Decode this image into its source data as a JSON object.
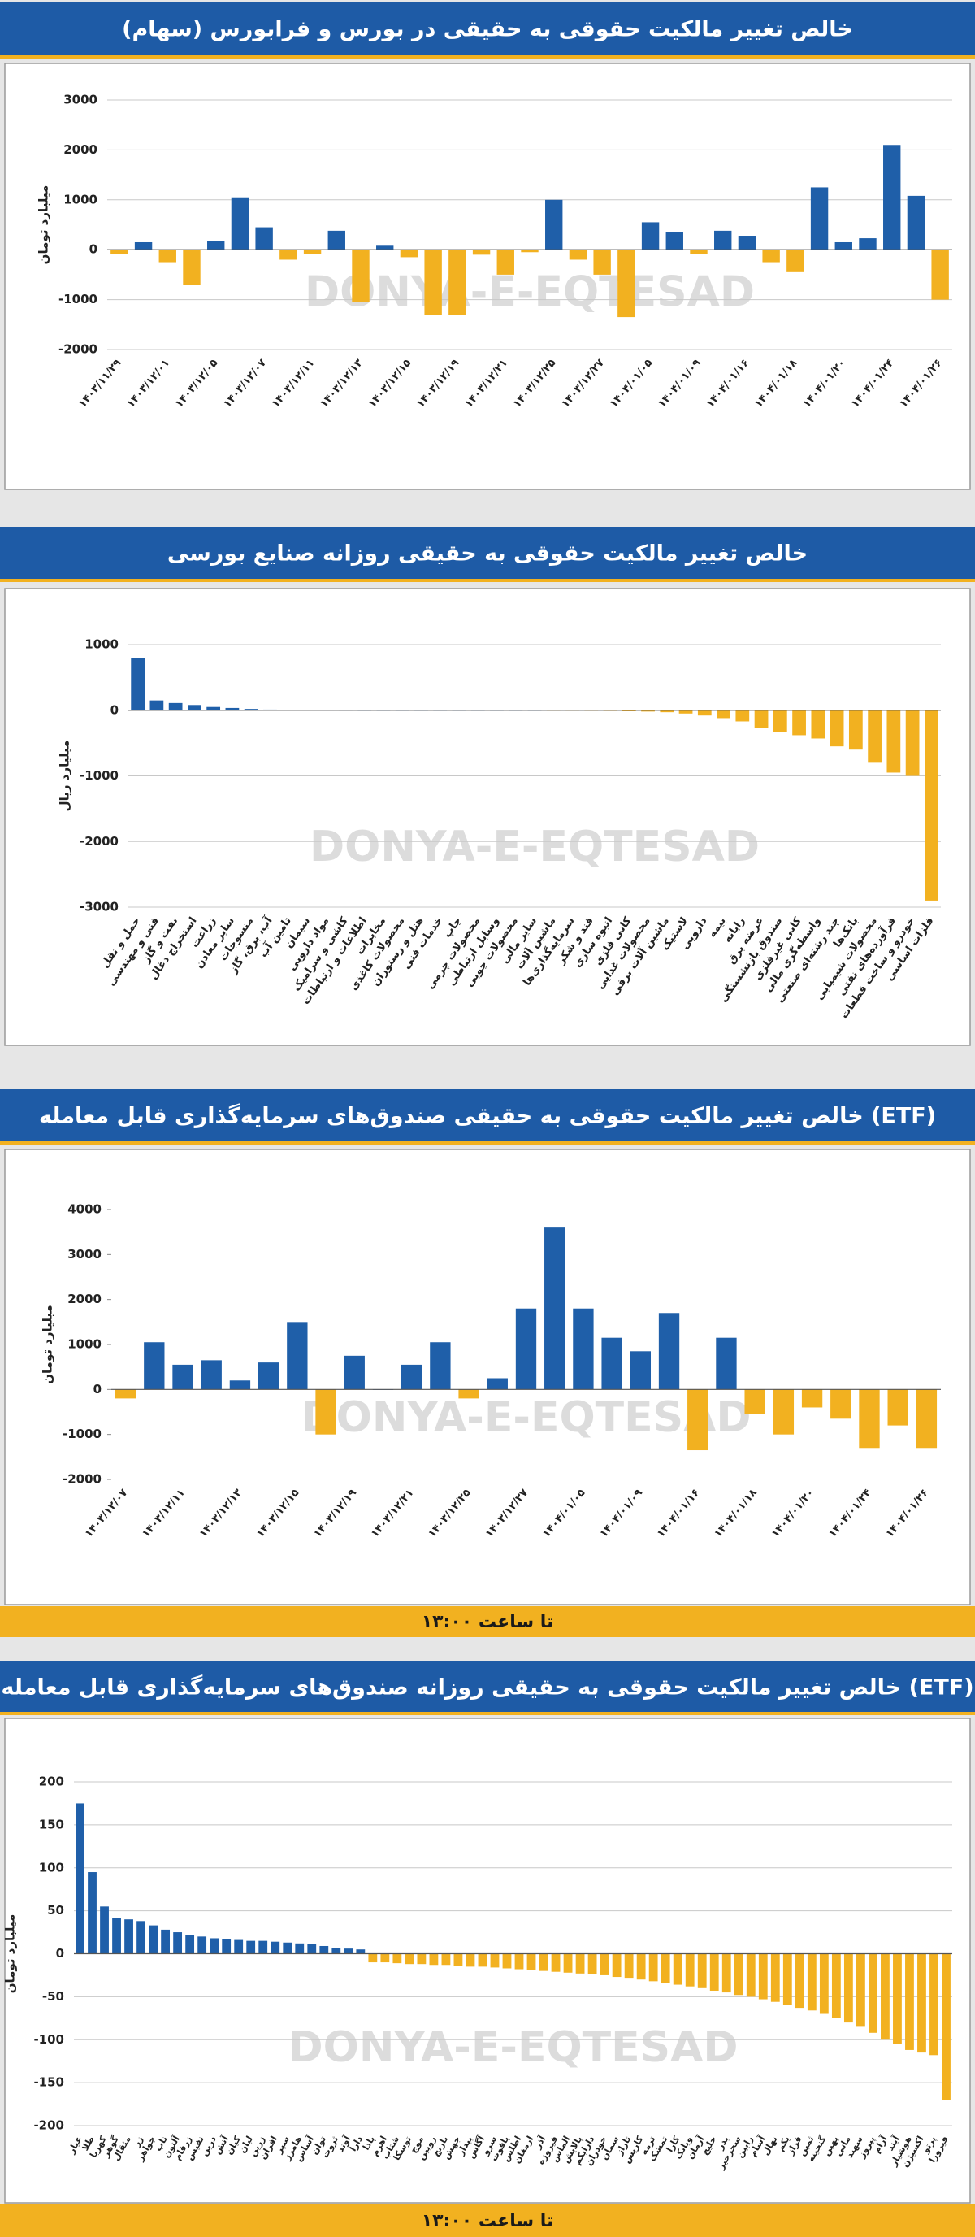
{
  "watermark": "DONYA-E-EQTESAD",
  "chart_data": [
    {
      "type": "bar",
      "title": "خالص تغییر مالکیت حقوقی به حقیقی در بورس و فرابورس (سهام)",
      "y_label": "میلیارد تومان",
      "categories": [
        "۱۴۰۳/۱۱/۲۹",
        null,
        "۱۴۰۳/۱۲/۰۱",
        null,
        "۱۴۰۳/۱۲/۰۵",
        null,
        "۱۴۰۳/۱۲/۰۷",
        null,
        "۱۴۰۳/۱۲/۱۱",
        null,
        "۱۴۰۳/۱۲/۱۳",
        null,
        "۱۴۰۳/۱۲/۱۵",
        null,
        "۱۴۰۳/۱۲/۱۹",
        null,
        "۱۴۰۳/۱۲/۲۱",
        null,
        "۱۴۰۳/۱۲/۲۵",
        null,
        "۱۴۰۳/۱۲/۲۷",
        null,
        "۱۴۰۴/۰۱/۰۵",
        null,
        "۱۴۰۴/۰۱/۰۹",
        null,
        "۱۴۰۴/۰۱/۱۶",
        null,
        "۱۴۰۴/۰۱/۱۸",
        null,
        "۱۴۰۴/۰۱/۲۰",
        null,
        "۱۴۰۴/۰۱/۲۴",
        null,
        "۱۴۰۴/۰۱/۲۶"
      ],
      "values": [
        -80,
        150,
        -250,
        -700,
        170,
        1050,
        450,
        -200,
        -80,
        380,
        -1050,
        80,
        -150,
        -1300,
        -1300,
        -100,
        -500,
        -50,
        1000,
        -200,
        -500,
        -1350,
        550,
        350,
        -80,
        380,
        280,
        -250,
        -450,
        1250,
        150,
        230,
        2100,
        1080,
        -1000
      ],
      "color_positive": "#1f5fa9",
      "color_negative": "#f2b120",
      "ylim": [
        -2000,
        3000
      ],
      "yticks": [
        -2000,
        -1000,
        0,
        1000,
        2000,
        3000
      ],
      "grid": true
    },
    {
      "type": "bar",
      "title": "خالص تغییر مالکیت حقوقی به حقیقی روزانه صنایع بورسی",
      "y_label": "میلیارد ریال",
      "categories": [
        "حمل و نقل",
        "فنی و مهندسی",
        "نفت و گاز",
        "استخراج ذغال",
        "زراعت",
        "سایر معادن",
        "منسوجات",
        "آب، برق، گاز",
        "تامین آب",
        "سیمان",
        "مواد دارویی",
        "کاشی و سرامیک",
        "اطلاعات و ارتباطات",
        "مخابرات",
        "محصولات کاغذی",
        "هتل و رستوران",
        "خدمات فنی",
        "چاپ",
        "محصولات چرمی",
        "وسایل ارتباطی",
        "محصولات چوبی",
        "سایر مالی",
        "ماشین آلات",
        "سرمایه‌گذاری‌ها",
        "قند و شکر",
        "انبوه سازی",
        "کانی فلزی",
        "محصولات غذایی",
        "ماشین آلات برقی",
        "لاستیک",
        "دارویی",
        "بیمه",
        "رایانه",
        "عرضه برق",
        "صندوق بازنشستگی",
        "کانی غیرفلزی",
        "واسطه‌گری مالی",
        "چند رشته‌ای صنعتی",
        "بانک‌ها",
        "محصولات شیمیایی",
        "فرآورده‌های نفتی",
        "خودرو و ساخت قطعات",
        "فلزات اساسی"
      ],
      "values": [
        800,
        150,
        110,
        80,
        50,
        35,
        20,
        10,
        8,
        5,
        3,
        2,
        0,
        0,
        0,
        0,
        0,
        0,
        0,
        0,
        0,
        0,
        -3,
        -5,
        -8,
        -10,
        -15,
        -20,
        -30,
        -50,
        -80,
        -120,
        -170,
        -270,
        -330,
        -380,
        -430,
        -550,
        -600,
        -800,
        -950,
        -1000,
        -2900
      ],
      "color_positive": "#1f5fa9",
      "color_negative": "#f2b120",
      "ylim": [
        -3000,
        1000
      ],
      "yticks": [
        -3000,
        -2000,
        -1000,
        0,
        1000
      ],
      "grid": true
    },
    {
      "type": "bar",
      "title": "خالص تغییر مالکیت حقوقی به حقیقی صندوق‌های سرمایه‌گذاری قابل معامله (ETF)",
      "y_label": "میلیارد تومان",
      "note": "تا ساعت ۱۳:۰۰",
      "categories": [
        "۱۴۰۳/۱۲/۰۷",
        null,
        "۱۴۰۳/۱۲/۱۱",
        null,
        "۱۴۰۳/۱۲/۱۳",
        null,
        "۱۴۰۳/۱۲/۱۵",
        null,
        "۱۴۰۳/۱۲/۱۹",
        null,
        "۱۴۰۳/۱۲/۲۱",
        null,
        "۱۴۰۳/۱۲/۲۵",
        null,
        "۱۴۰۳/۱۲/۲۷",
        null,
        "۱۴۰۴/۰۱/۰۵",
        null,
        "۱۴۰۴/۰۱/۰۹",
        null,
        "۱۴۰۴/۰۱/۱۶",
        null,
        "۱۴۰۴/۰۱/۱۸",
        null,
        "۱۴۰۴/۰۱/۲۰",
        null,
        "۱۴۰۴/۰۱/۲۴",
        null,
        "۱۴۰۴/۰۱/۲۶"
      ],
      "values": [
        -200,
        1050,
        550,
        650,
        200,
        600,
        1500,
        -1000,
        750,
        0,
        550,
        1050,
        -200,
        250,
        1800,
        3600,
        1800,
        1150,
        850,
        1700,
        -1350,
        1150,
        -550,
        -1000,
        -400,
        -650,
        -1300,
        -800,
        -1300
      ],
      "color_positive": "#1f5fa9",
      "color_negative": "#f2b120",
      "ylim": [
        -2000,
        4000
      ],
      "yticks": [
        -2000,
        -1000,
        0,
        1000,
        2000,
        3000,
        4000
      ],
      "grid": false
    },
    {
      "type": "bar",
      "title": "خالص تغییر مالکیت حقوقی به حقیقی روزانه صندوق‌های سرمایه‌گذاری قابل معامله (ETF)",
      "y_label": "میلیارد تومان",
      "note": "تا ساعت ۱۳:۰۰",
      "categories": [
        "عیار",
        "طلا",
        "کهربا",
        "گوهر",
        "مثقال",
        "زر",
        "جواهر",
        "ناب",
        "آلتون",
        "زرفام",
        "نفیس",
        "درین",
        "آتش",
        "کیان",
        "لیان",
        "زرین",
        "افران",
        "سپر",
        "هامرز",
        "آساس",
        "توان",
        "ثروت",
        "آوند",
        "دارا",
        "پادا",
        "اهرم",
        "شتاب",
        "توسکا",
        "موج",
        "رویین",
        "نارنج",
        "جهش",
        "بیدار",
        "آگاس",
        "سرو",
        "یاقوت",
        "اطلس",
        "ارمغان",
        "آذر",
        "فیروزه",
        "الماس",
        "پالایش",
        "دارایکم",
        "خودران",
        "سمان",
        "تاراز",
        "کاریس",
        "ترمه",
        "تمشک",
        "کارا",
        "وبانک",
        "آرمان",
        "خلیج",
        "بذر",
        "سحرخیز",
        "رابین",
        "آسام",
        "نهال",
        "یکم",
        "فراز",
        "ثمین",
        "گنجینه",
        "بهین",
        "مانی",
        "سهند",
        "پیروز",
        "آرام",
        "آیند",
        "هوشیار",
        "اکسیژن",
        "پرتو",
        "فیروزا"
      ],
      "values": [
        175,
        95,
        55,
        42,
        40,
        38,
        33,
        28,
        25,
        22,
        20,
        18,
        17,
        16,
        15,
        15,
        14,
        13,
        12,
        11,
        9,
        7,
        6,
        5,
        -10,
        -10,
        -11,
        -12,
        -12,
        -13,
        -13,
        -14,
        -15,
        -15,
        -16,
        -17,
        -18,
        -19,
        -20,
        -21,
        -22,
        -23,
        -24,
        -25,
        -27,
        -28,
        -30,
        -32,
        -34,
        -36,
        -38,
        -40,
        -43,
        -45,
        -48,
        -50,
        -53,
        -56,
        -60,
        -63,
        -66,
        -70,
        -75,
        -80,
        -85,
        -92,
        -100,
        -105,
        -112,
        -115,
        -118,
        -170
      ],
      "color_positive": "#1f5fa9",
      "color_negative": "#f2b120",
      "ylim": [
        -200,
        200
      ],
      "yticks": [
        -200,
        -150,
        -100,
        -50,
        0,
        50,
        100,
        150,
        200
      ],
      "grid": true
    }
  ]
}
